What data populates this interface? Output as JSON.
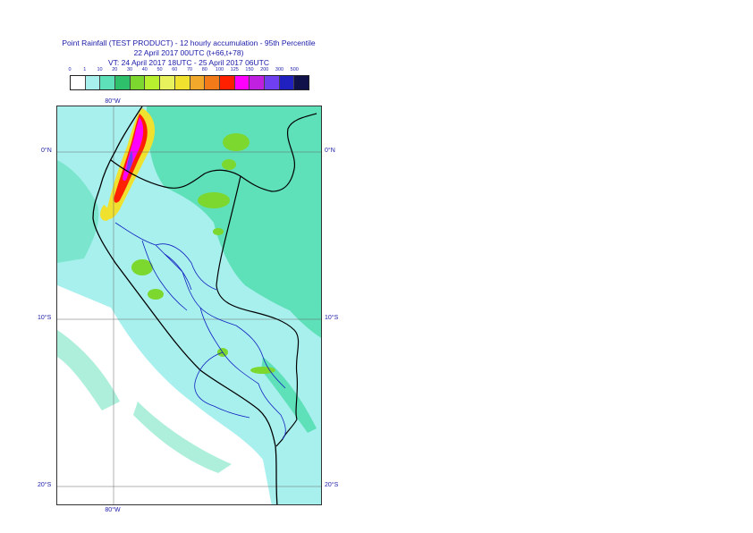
{
  "title": {
    "line1": "Point Rainfall (TEST PRODUCT) - 12 hourly accumulation - 95th Percentile",
    "line2": "22 April 2017 00UTC (t+66,t+78)",
    "line3": "VT: 24 April 2017 18UTC - 25 April 2017 06UTC"
  },
  "legend": {
    "labels": [
      "0",
      "1",
      "10",
      "20",
      "30",
      "40",
      "50",
      "60",
      "70",
      "80",
      "100",
      "125",
      "150",
      "200",
      "300",
      "500"
    ],
    "colors": [
      "#ffffff",
      "#a8f0ee",
      "#5ee0b8",
      "#2ec06a",
      "#7cd82e",
      "#b8f030",
      "#e8f25c",
      "#f0e12e",
      "#f2a82a",
      "#f27a18",
      "#ff2000",
      "#ff00ff",
      "#c020e0",
      "#7040f0",
      "#2020c0",
      "#10104a"
    ]
  },
  "map": {
    "lat_labels": [
      "0°N",
      "10°S",
      "20°S"
    ],
    "lon_labels": [
      "80°W",
      "80°W"
    ]
  }
}
